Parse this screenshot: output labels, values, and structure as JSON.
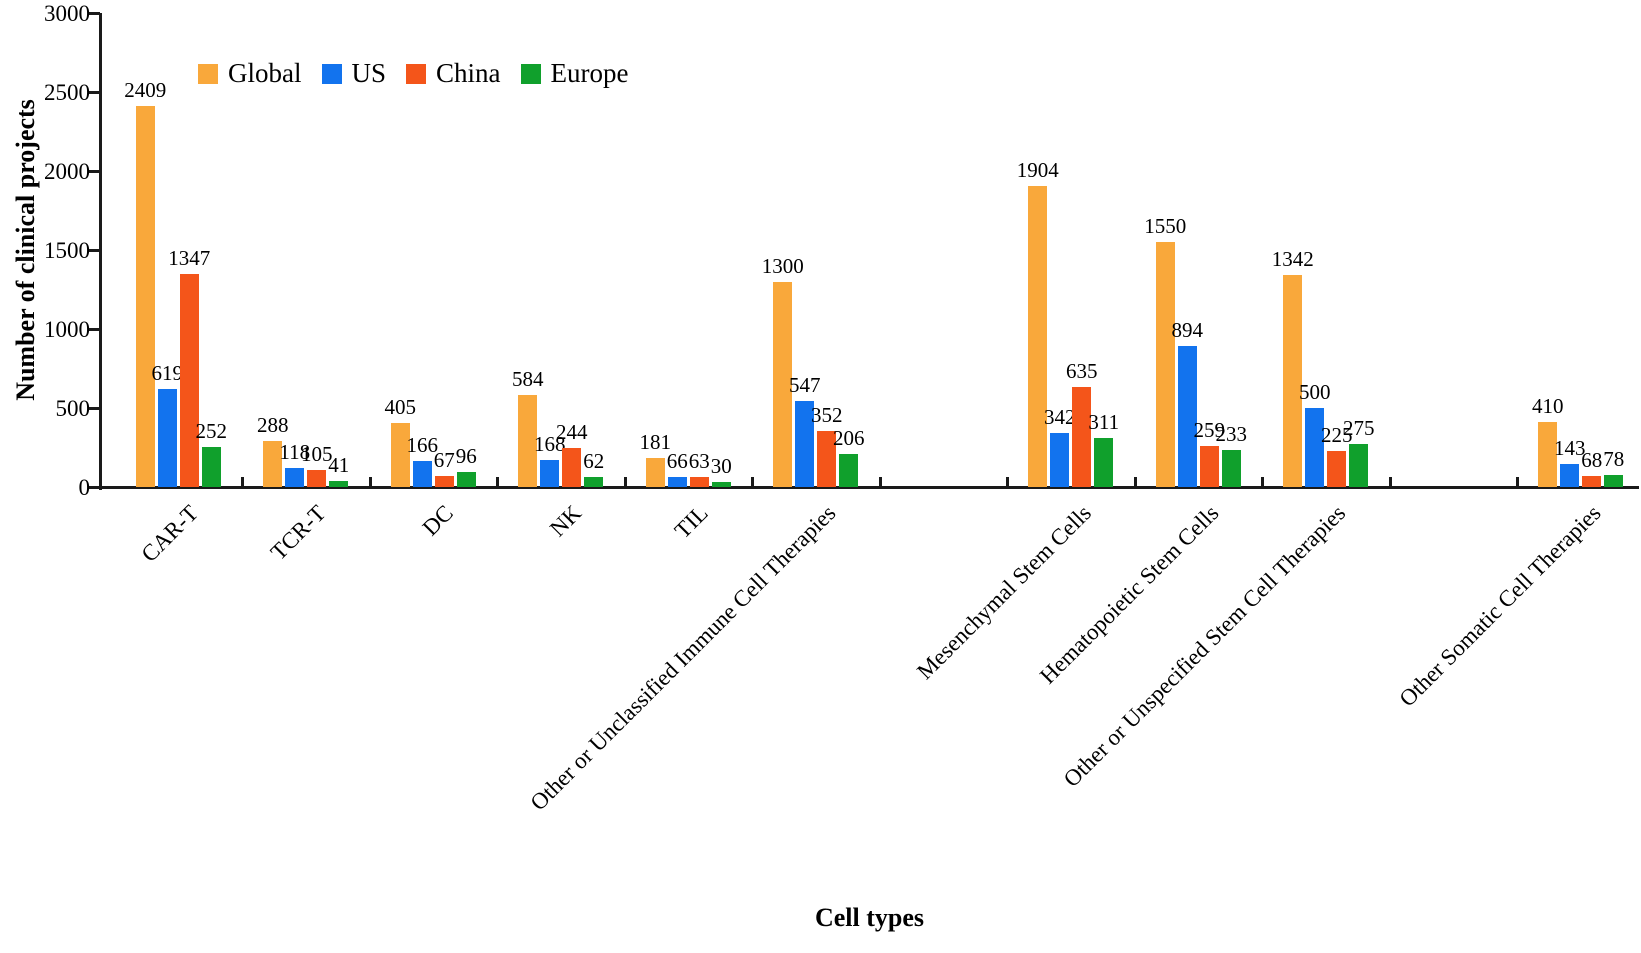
{
  "chart_data": {
    "type": "bar",
    "title": "",
    "xlabel": "Cell types",
    "ylabel": "Number of clinical projects",
    "ylim": [
      0,
      3000
    ],
    "yticks": [
      0,
      500,
      1000,
      1500,
      2000,
      2500,
      3000
    ],
    "grid": false,
    "legend_position": "top-left",
    "categories": [
      "CAR-T",
      "TCR-T",
      "DC",
      "NK",
      "TIL",
      "Other or Unclassified Immune Cell Therapies",
      "Mesenchymal Stem Cells",
      "Hematopoietic Stem Cells",
      "Other or Unspecified Stem Cell Therapies",
      "Other Somatic Cell Therapies"
    ],
    "series": [
      {
        "name": "Global",
        "color": "#F9A83B",
        "values": [
          2409,
          288,
          405,
          584,
          181,
          1300,
          1904,
          1550,
          1342,
          410
        ]
      },
      {
        "name": "US",
        "color": "#1273EE",
        "values": [
          619,
          118,
          166,
          168,
          66,
          547,
          342,
          894,
          500,
          143
        ]
      },
      {
        "name": "China",
        "color": "#F4551A",
        "values": [
          1347,
          105,
          67,
          244,
          63,
          352,
          635,
          259,
          225,
          68
        ]
      },
      {
        "name": "Europe",
        "color": "#10A02C",
        "values": [
          252,
          41,
          96,
          62,
          30,
          206,
          311,
          233,
          275,
          78
        ]
      }
    ],
    "data_labels_shown": true,
    "axis_color": "#1a1a1a"
  }
}
